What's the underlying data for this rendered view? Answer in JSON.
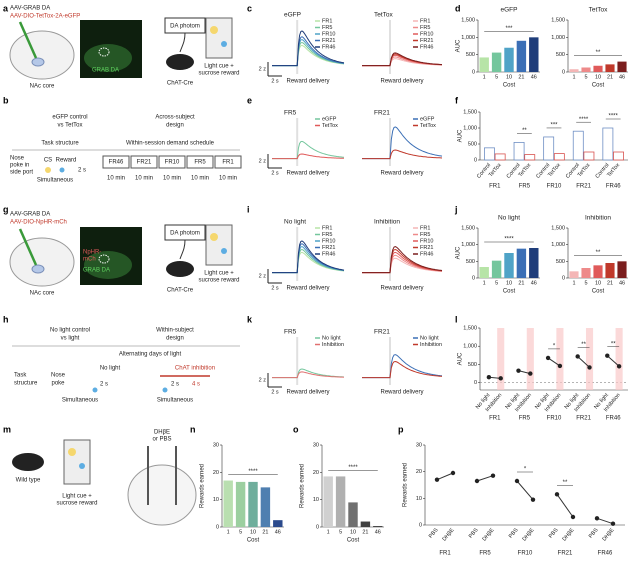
{
  "panels": {
    "a": {
      "letter": "a",
      "texts": [
        "AAV-GRAB DA",
        "AAV-DIO-TetTox-2A-eGFP",
        "NAc core",
        "GRAB DA",
        "DA photom",
        "ChAT-Cre",
        "Light cue +",
        "sucrose reward"
      ]
    },
    "c": {
      "letter": "c",
      "charts": [
        {
          "type": "trace",
          "title": "eGFP",
          "xlabel": "Reward delivery",
          "scale_y": "2 z",
          "scale_x": "2 s",
          "series": [
            {
              "name": "FR1",
              "color": "#b7e4a7",
              "peak": 3.5
            },
            {
              "name": "FR5",
              "color": "#74c69d",
              "peak": 4
            },
            {
              "name": "FR10",
              "color": "#4fa3c7",
              "peak": 4.5
            },
            {
              "name": "FR21",
              "color": "#3b6fb6",
              "peak": 5
            },
            {
              "name": "FR46",
              "color": "#1f3d7a",
              "peak": 6
            }
          ]
        },
        {
          "type": "trace",
          "title": "TetTox",
          "xlabel": "Reward delivery",
          "series": [
            {
              "name": "FR1",
              "color": "#f4b6b6",
              "peak": 1.2
            },
            {
              "name": "FR5",
              "color": "#ee8a8a",
              "peak": 1.5
            },
            {
              "name": "FR10",
              "color": "#e05a5a",
              "peak": 1.8
            },
            {
              "name": "FR21",
              "color": "#c0392b",
              "peak": 2
            },
            {
              "name": "FR46",
              "color": "#7b1e1e",
              "peak": 2.2
            }
          ]
        }
      ]
    },
    "d": {
      "letter": "d",
      "charts": [
        {
          "type": "bar",
          "title": "eGFP",
          "categories": [
            "1",
            "5",
            "10",
            "21",
            "46"
          ],
          "values": [
            420,
            560,
            700,
            900,
            1000
          ],
          "colors": [
            "#b7e4a7",
            "#74c69d",
            "#4fa3c7",
            "#3b6fb6",
            "#1f3d7a"
          ],
          "ylim": [
            0,
            1500
          ],
          "yticks": [
            0,
            500,
            {
              "value": 1000,
              "label": "1,000"
            },
            {
              "value": 1500,
              "label": "1,500"
            }
          ],
          "ylabel": "AUC",
          "xlabel": "Cost",
          "significance": "***"
        },
        {
          "type": "bar",
          "title": "TetTox",
          "categories": [
            "1",
            "5",
            "10",
            "21",
            "46"
          ],
          "values": [
            80,
            130,
            180,
            220,
            300
          ],
          "colors": [
            "#f4b6b6",
            "#ee8a8a",
            "#e05a5a",
            "#c0392b",
            "#7b1e1e"
          ],
          "ylim": [
            0,
            1500
          ],
          "yticks": [
            0,
            500,
            {
              "value": 1000,
              "label": "1,000"
            },
            {
              "value": 1500,
              "label": "1,500"
            }
          ],
          "xlabel": "Cost",
          "significance": "**"
        }
      ]
    },
    "b": {
      "letter": "b",
      "texts": [
        "eGFP control",
        "vs TetTox",
        "Across-subject",
        "design",
        "Task structure",
        "Within-session demand schedule",
        "Nose",
        "poke in",
        "side port",
        "CS",
        "Reward",
        "2 s",
        "Simultaneous",
        "FR46",
        "FR21",
        "FR10",
        "FR5",
        "FR1",
        "10 min",
        "10 min",
        "10 min",
        "10 min",
        "10 min"
      ]
    },
    "e": {
      "letter": "e",
      "charts": [
        {
          "type": "trace",
          "title": "FR5",
          "xlabel": "Reward delivery",
          "scale_y": "2 z",
          "scale_x": "2 s",
          "series": [
            {
              "name": "eGFP",
              "color": "#74c69d",
              "peak": 3
            },
            {
              "name": "TetTox",
              "color": "#e05a5a",
              "peak": 0.8
            }
          ]
        },
        {
          "type": "trace",
          "title": "FR21",
          "xlabel": "Reward delivery",
          "series": [
            {
              "name": "eGFP",
              "color": "#3b6fb6",
              "peak": 5.5
            },
            {
              "name": "TetTox",
              "color": "#c0392b",
              "peak": 1.5
            }
          ]
        }
      ]
    },
    "f": {
      "letter": "f",
      "charts": [
        {
          "type": "grouped",
          "categories": [
            "FR1",
            "FR5",
            "FR10",
            "FR21",
            "FR46"
          ],
          "series": [
            {
              "name": "Control",
              "color": "#6f8fc4",
              "values": [
                380,
                550,
                720,
                900,
                1000
              ]
            },
            {
              "name": "TetTox",
              "color": "#d9534f",
              "values": [
                190,
                170,
                200,
                250,
                250
              ]
            }
          ],
          "significance": [
            null,
            "**",
            "***",
            "****",
            "****"
          ],
          "ylim": [
            0,
            1500
          ],
          "yticks": [
            0,
            500,
            {
              "value": 1000,
              "label": "1,000"
            },
            {
              "value": 1500,
              "label": "1,500"
            }
          ],
          "ylabel": "AUC"
        }
      ]
    },
    "g": {
      "letter": "g",
      "texts": [
        "AAV-GRAB DA",
        "AAV-DIO-NpHR-mCh",
        "NpHR-",
        "mCh",
        "GRAB DA",
        "NAc core",
        "DA photom",
        "ChAT-Cre",
        "Light cue +",
        "sucrose reward"
      ]
    },
    "i": {
      "letter": "i",
      "charts": [
        {
          "type": "trace",
          "title": "No light",
          "xlabel": "Reward delivery",
          "scale_y": "2 z",
          "scale_x": "2 s",
          "series": [
            {
              "name": "FR1",
              "color": "#b7e4a7",
              "peak": 3.5
            },
            {
              "name": "FR5",
              "color": "#74c69d",
              "peak": 4
            },
            {
              "name": "FR10",
              "color": "#4fa3c7",
              "peak": 4.5
            },
            {
              "name": "FR21",
              "color": "#3b6fb6",
              "peak": 5
            },
            {
              "name": "FR46",
              "color": "#1f3d7a",
              "peak": 5.5
            }
          ]
        },
        {
          "type": "trace",
          "title": "Inhibition",
          "xlabel": "Reward delivery",
          "series": [
            {
              "name": "FR1",
              "color": "#f4b6b6",
              "peak": 2.5
            },
            {
              "name": "FR5",
              "color": "#ee8a8a",
              "peak": 3
            },
            {
              "name": "FR10",
              "color": "#e05a5a",
              "peak": 3.5
            },
            {
              "name": "FR21",
              "color": "#c0392b",
              "peak": 4
            },
            {
              "name": "FR46",
              "color": "#7b1e1e",
              "peak": 4.5
            }
          ]
        }
      ]
    },
    "j": {
      "letter": "j",
      "charts": [
        {
          "type": "bar",
          "title": "No light",
          "categories": [
            "1",
            "5",
            "10",
            "21",
            "46"
          ],
          "values": [
            330,
            520,
            750,
            880,
            900
          ],
          "colors": [
            "#b7e4a7",
            "#74c69d",
            "#4fa3c7",
            "#3b6fb6",
            "#1f3d7a"
          ],
          "ylim": [
            0,
            1500
          ],
          "yticks": [
            0,
            500,
            {
              "value": 1000,
              "label": "1,000"
            },
            {
              "value": 1500,
              "label": "1,500"
            }
          ],
          "ylabel": "AUC",
          "xlabel": "Cost",
          "significance": "****"
        },
        {
          "type": "bar",
          "title": "Inhibition",
          "categories": [
            "1",
            "5",
            "10",
            "21",
            "46"
          ],
          "values": [
            200,
            300,
            380,
            450,
            500
          ],
          "colors": [
            "#f4b6b6",
            "#ee8a8a",
            "#e05a5a",
            "#c0392b",
            "#7b1e1e"
          ],
          "ylim": [
            0,
            1500
          ],
          "yticks": [
            0,
            500,
            {
              "value": 1000,
              "label": "1,000"
            },
            {
              "value": 1500,
              "label": "1,500"
            }
          ],
          "xlabel": "Cost",
          "significance": "**"
        }
      ]
    },
    "h": {
      "letter": "h",
      "texts": [
        "No light control",
        "vs light",
        "Within-subject",
        "design",
        "Alternating days of light",
        "Task",
        "structure",
        "Nose",
        "poke",
        "No light",
        "2 s",
        "Simultaneous",
        "ChAT inhibition",
        "2 s",
        "4 s",
        "Simultaneous"
      ]
    },
    "k": {
      "letter": "k",
      "charts": [
        {
          "type": "trace",
          "title": "FR5",
          "xlabel": "Reward delivery",
          "scale_y": "2 z",
          "scale_x": "2 s",
          "series": [
            {
              "name": "No light",
              "color": "#74c69d",
              "peak": 1.5
            },
            {
              "name": "Inhibition",
              "color": "#e07070",
              "peak": 1
            }
          ]
        },
        {
          "type": "trace",
          "title": "FR21",
          "xlabel": "Reward delivery",
          "series": [
            {
              "name": "No light",
              "color": "#3b6fb6",
              "peak": 4
            },
            {
              "name": "Inhibition",
              "color": "#c0392b",
              "peak": 2.8
            }
          ]
        }
      ]
    },
    "l": {
      "letter": "l",
      "charts": [
        {
          "type": "paired",
          "categories": [
            "FR1",
            "FR5",
            "FR10",
            "FR21",
            "FR46"
          ],
          "series": [
            {
              "name": "No light",
              "color": "#222222",
              "values": [
                150,
                330,
                680,
                720,
                740
              ]
            },
            {
              "name": "Inhibition",
              "color": "#222222",
              "values": [
                120,
                250,
                460,
                420,
                450
              ]
            }
          ],
          "band_color": "#f9c9c9",
          "significance": [
            null,
            null,
            "*",
            "**",
            "**"
          ],
          "ylim": [
            -200,
            1500
          ],
          "yticks": [
            0,
            500,
            {
              "value": 1000,
              "label": "1,000"
            },
            {
              "value": 1500,
              "label": "1,500"
            }
          ],
          "ylabel": "AUC"
        }
      ]
    },
    "m": {
      "letter": "m",
      "texts": [
        "Wild type",
        "Light cue +",
        "sucrose reward",
        "DHβE",
        "or PBS"
      ]
    },
    "n": {
      "letter": "n",
      "charts": [
        {
          "type": "bar",
          "categories": [
            "1",
            "5",
            "10",
            "21",
            "46"
          ],
          "values": [
            17,
            16.5,
            16.5,
            14.5,
            2.5
          ],
          "colors": [
            "#b9dfb0",
            "#9ccfa0",
            "#6fae9c",
            "#4f7fb0",
            "#2b4a8c"
          ],
          "ylim": [
            0,
            30
          ],
          "yticks": [
            0,
            10,
            20,
            30
          ],
          "ylabel": "Rewards earned",
          "xlabel": "Cost",
          "significance": "****"
        }
      ]
    },
    "o": {
      "letter": "o",
      "charts": [
        {
          "type": "bar",
          "categories": [
            "1",
            "5",
            "10",
            "21",
            "46"
          ],
          "values": [
            18.5,
            18.5,
            9,
            2,
            0.3
          ],
          "colors": [
            "#d0d0d0",
            "#b0b0b0",
            "#707070",
            "#404040",
            "#202020"
          ],
          "ylim": [
            0,
            30
          ],
          "yticks": [
            0,
            10,
            20,
            30
          ],
          "ylabel": "Rewards earned",
          "xlabel": "Cost",
          "significance": "****"
        }
      ]
    },
    "p": {
      "letter": "p",
      "charts": [
        {
          "type": "paired",
          "categories": [
            "FR1",
            "FR5",
            "FR10",
            "FR21",
            "FR46"
          ],
          "series": [
            {
              "name": "PBS",
              "color": "#222222",
              "values": [
                17,
                16.5,
                16.5,
                11.5,
                2.5
              ]
            },
            {
              "name": "DHβE",
              "color": "#222222",
              "values": [
                19.5,
                18.5,
                9.5,
                3,
                0.5
              ]
            }
          ],
          "significance": [
            null,
            null,
            "*",
            "**",
            null
          ],
          "ylim": [
            0,
            30
          ],
          "yticks": [
            0,
            10,
            20,
            30
          ],
          "ylabel": "Rewards earned"
        }
      ]
    }
  }
}
